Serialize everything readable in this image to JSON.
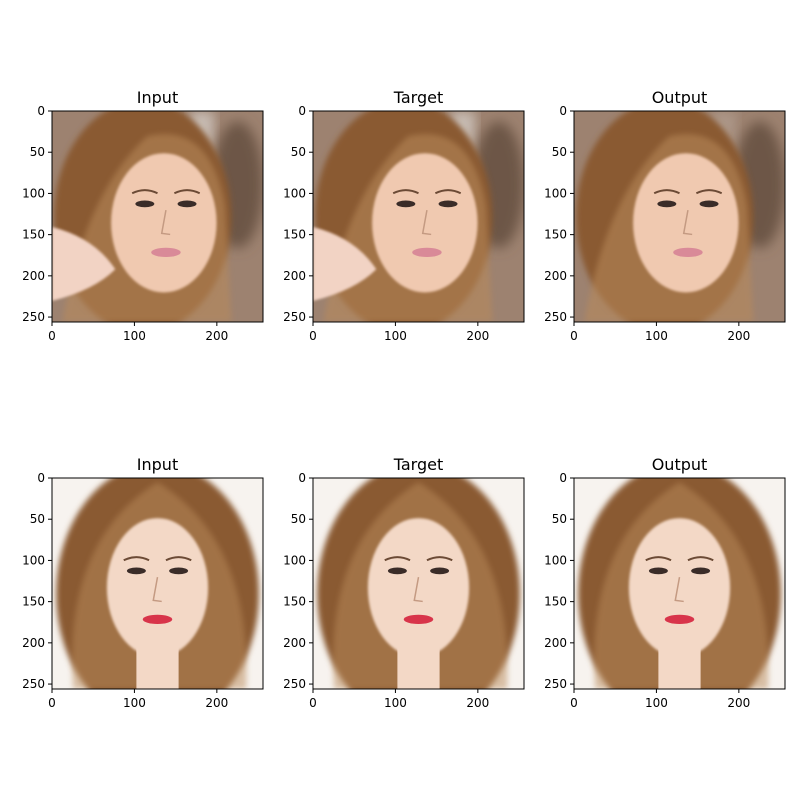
{
  "figure": {
    "panels": [
      {
        "title": "Input",
        "image": "face-1-input",
        "palette": "warm-blur"
      },
      {
        "title": "Target",
        "image": "face-1-target",
        "palette": "warm-blur"
      },
      {
        "title": "Output",
        "image": "face-1-output",
        "palette": "warm-smooth"
      },
      {
        "title": "Input",
        "image": "face-2-input",
        "palette": "light"
      },
      {
        "title": "Target",
        "image": "face-2-target",
        "palette": "light"
      },
      {
        "title": "Output",
        "image": "face-2-output",
        "palette": "light-smooth"
      }
    ],
    "x_ticks": [
      "0",
      "100",
      "200"
    ],
    "y_ticks": [
      "0",
      "50",
      "100",
      "150",
      "200",
      "250"
    ],
    "x_tick_values": [
      0,
      100,
      200
    ],
    "y_tick_values": [
      0,
      50,
      100,
      150,
      200,
      250
    ],
    "image_extent": [
      0,
      256
    ],
    "colors": {
      "hair_brown": "#8a5a33",
      "hair_light": "#b98a5a",
      "skin": "#f0c9b0",
      "skin_light": "#f3d8c6",
      "bg_blur": "#9d8270",
      "bg_light": "#f7f3ef",
      "lips": "#d8344a",
      "lips_pink": "#d98a98"
    }
  }
}
